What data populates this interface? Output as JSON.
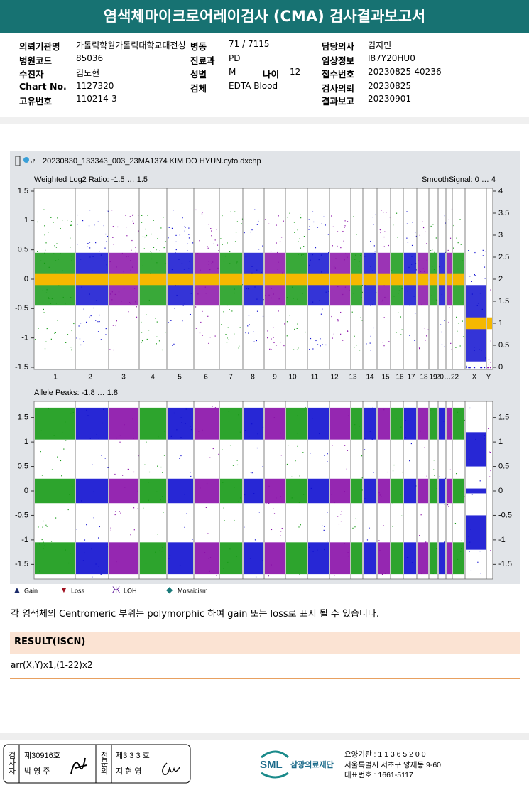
{
  "header": {
    "title": "염색체마이크로어레이검사 (CMA) 검사결과보고서"
  },
  "info": [
    {
      "label": "의뢰기관명",
      "value": "가톨릭학원가톨릭대학교대전성"
    },
    {
      "label": "병동",
      "value": "71 / 7115"
    },
    {
      "label": "담당의사",
      "value": "김지민"
    },
    {
      "label": "병원코드",
      "value": "85036"
    },
    {
      "label": "진료과",
      "value": "PD"
    },
    {
      "label": "임상정보",
      "value": "I87Y20HU0"
    },
    {
      "label": "수진자",
      "value": "김도현"
    },
    {
      "label": "성별",
      "value": "M"
    },
    {
      "label": "나이",
      "value": "12"
    },
    {
      "label": "접수번호",
      "value": "20230825-40236"
    },
    {
      "label": "Chart No.",
      "value": "1127320"
    },
    {
      "label": "검체",
      "value": "EDTA Blood"
    },
    {
      "label": "검사의뢰",
      "value": "20230825"
    },
    {
      "label": "고유번호",
      "value": "110214-3"
    },
    {
      "label": "결과보고",
      "value": "20230901"
    }
  ],
  "figure": {
    "file": "20230830_133343_003_23MA1374 KIM DO HYUN.cyto.dxchp",
    "chromosomes": [
      "1",
      "2",
      "3",
      "4",
      "5",
      "6",
      "7",
      "8",
      "9",
      "10",
      "11",
      "12",
      "13",
      "14",
      "15",
      "16",
      "17",
      "18",
      "19",
      "20…22",
      "X",
      "Y"
    ],
    "plots": [
      {
        "title": "Weighted Log2 Ratio: -1.5 … 1.5",
        "right_title": "SmoothSignal: 0 … 4",
        "ylim": [
          -1.5,
          1.5
        ],
        "yticks": [
          1.5,
          1,
          0.5,
          0,
          -0.5,
          -1,
          -1.5
        ],
        "y2lim": [
          0,
          4
        ],
        "y2ticks": [
          4,
          3.5,
          3,
          2.5,
          2,
          1.5,
          1,
          0.5,
          0
        ]
      },
      {
        "title": "Allele Peaks: -1.8 … 1.8",
        "ylim": [
          -1.8,
          1.8
        ],
        "yticks": [
          1.5,
          1,
          0.5,
          0,
          -0.5,
          -1,
          -1.5
        ],
        "y2lim": [
          -1.8,
          1.8
        ],
        "y2ticks": [
          1.5,
          1,
          0.5,
          0,
          -0.5,
          -1,
          -1.5
        ]
      }
    ],
    "legend": [
      "Gain",
      "Loss",
      "LOH",
      "Mosaicism"
    ]
  },
  "note": "각 염색체의 Centromeric 부위는 polymorphic 하여 gain 또는 loss로 표시 될 수 있습니다.",
  "result": {
    "title": "RESULT(ISCN)",
    "value": "arr(X,Y)x1,(1-22)x2"
  },
  "footer": {
    "examiner_label": "검사자",
    "examiner_no": "제30916호",
    "examiner_name": "박 영 주",
    "specialist_label": "전문의",
    "specialist_no": "제3 3 3 호",
    "specialist_name": "지 현 영",
    "logo": "SML",
    "org": "삼광의료재단",
    "lines": [
      "요양기관 : 1 1 3 6 5 2 0 0",
      "서울특별시 서초구 양재동 9-60",
      "대표번호 : 1661-5117"
    ]
  }
}
